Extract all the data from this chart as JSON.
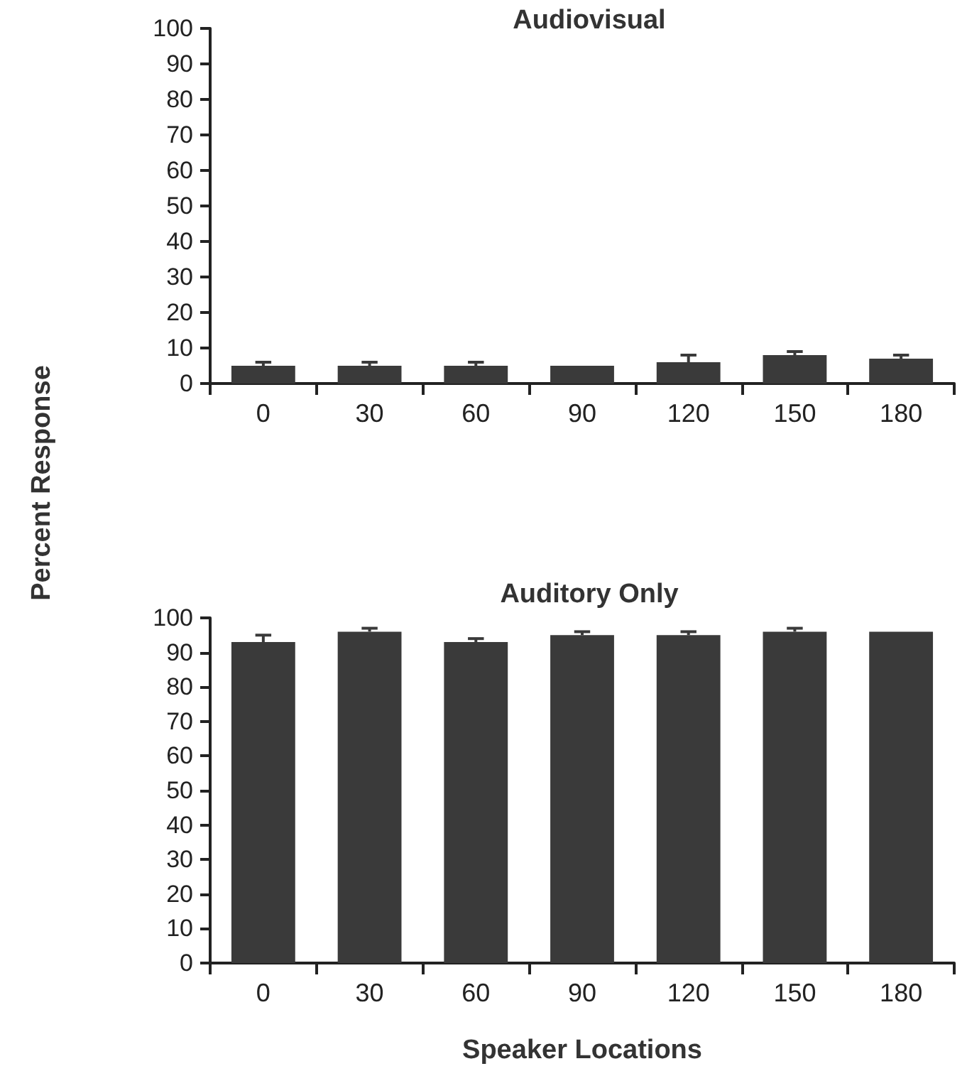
{
  "chart_data": [
    {
      "type": "bar",
      "title": "Audiovisual",
      "ylabel": "Percent Response",
      "categories": [
        "0",
        "30",
        "60",
        "90",
        "120",
        "150",
        "180"
      ],
      "series": [
        {
          "color": "#3a3a3a",
          "values": [
            5,
            5,
            5,
            5,
            6,
            8,
            7
          ],
          "errors": [
            [
              5,
              6
            ],
            [
              5,
              6
            ],
            [
              5,
              6
            ],
            null,
            [
              6,
              8
            ],
            [
              8,
              9
            ],
            [
              7,
              8
            ]
          ]
        }
      ],
      "ylim": [
        0,
        100
      ],
      "yticks": [
        0,
        10,
        20,
        30,
        40,
        50,
        60,
        70,
        80,
        90,
        100
      ],
      "grid": false
    },
    {
      "type": "bar",
      "title": "Auditory Only",
      "xlabel": "Speaker Locations",
      "categories": [
        "0",
        "30",
        "60",
        "90",
        "120",
        "150",
        "180"
      ],
      "series": [
        {
          "color": "#3a3a3a",
          "values": [
            93,
            96,
            93,
            95,
            95,
            96,
            96
          ],
          "errors": [
            [
              93,
              95
            ],
            [
              96,
              97
            ],
            [
              93,
              94
            ],
            [
              95,
              96
            ],
            [
              95,
              96
            ],
            [
              96,
              97
            ],
            null
          ]
        }
      ],
      "ylim": [
        0,
        100
      ],
      "yticks": [
        0,
        10,
        20,
        30,
        40,
        50,
        60,
        70,
        80,
        90,
        100
      ],
      "grid": false
    }
  ]
}
